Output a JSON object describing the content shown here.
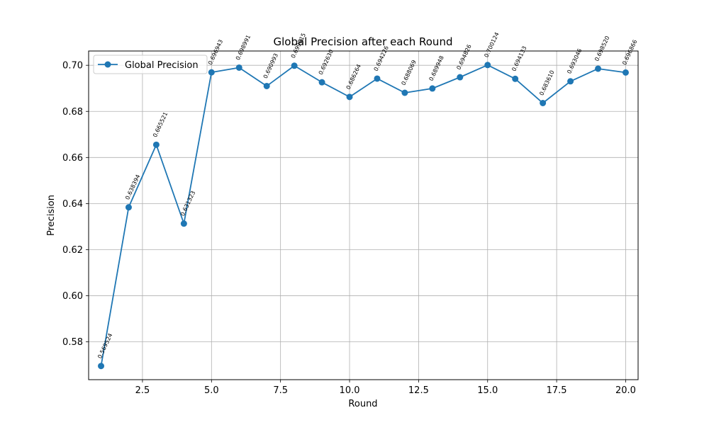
{
  "chart_data": {
    "type": "line",
    "title": "Global Precision after each Round",
    "xlabel": "Round",
    "ylabel": "Precision",
    "xlim": [
      0.55,
      20.45
    ],
    "ylim": [
      0.5636,
      0.7062
    ],
    "grid": true,
    "legend_position": "top-left",
    "x_ticks": [
      2.5,
      5.0,
      7.5,
      10.0,
      12.5,
      15.0,
      17.5,
      20.0
    ],
    "x_tick_labels": [
      "2.5",
      "5.0",
      "7.5",
      "10.0",
      "12.5",
      "15.0",
      "17.5",
      "20.0"
    ],
    "y_ticks": [
      0.58,
      0.6,
      0.62,
      0.64,
      0.66,
      0.68,
      0.7
    ],
    "y_tick_labels": [
      "0.58",
      "0.60",
      "0.62",
      "0.64",
      "0.66",
      "0.68",
      "0.70"
    ],
    "series": [
      {
        "name": "Global Precision",
        "color": "#1f77b4",
        "x": [
          1,
          2,
          3,
          4,
          5,
          6,
          7,
          8,
          9,
          10,
          11,
          12,
          13,
          14,
          15,
          16,
          17,
          18,
          19,
          20
        ],
        "values": [
          0.569524,
          0.638394,
          0.665521,
          0.631323,
          0.696943,
          0.698991,
          0.690993,
          0.699815,
          0.69263,
          0.686264,
          0.694226,
          0.688069,
          0.689948,
          0.694826,
          0.700124,
          0.694133,
          0.68361,
          0.693046,
          0.69852,
          0.696866
        ],
        "labels": [
          "0.569524",
          "0.638394",
          "0.665521",
          "0.631323",
          "0.696943",
          "0.698991",
          "0.690993",
          "0.699815",
          "0.692630",
          "0.686264",
          "0.694226",
          "0.688069",
          "0.689948",
          "0.694826",
          "0.700124",
          "0.694133",
          "0.683610",
          "0.693046",
          "0.698520",
          "0.696866"
        ]
      }
    ]
  }
}
